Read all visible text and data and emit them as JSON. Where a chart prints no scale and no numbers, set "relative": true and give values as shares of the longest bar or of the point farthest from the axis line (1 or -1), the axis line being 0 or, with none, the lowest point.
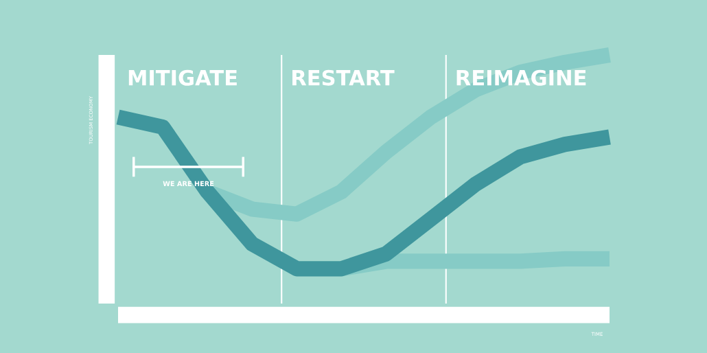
{
  "chart_data": {
    "type": "line",
    "relative": true,
    "ylabel": "TOURISM ECONOMY",
    "categories": [
      null,
      null,
      null,
      null,
      null,
      null,
      null,
      null,
      null,
      null,
      null,
      null
    ],
    "series": [
      {
        "color": "#86cbc6",
        "values": [
          null,
          null,
          0.45,
          0.38,
          0.36,
          0.45,
          0.61,
          0.75,
          0.86,
          0.93,
          0.97,
          1.0
        ]
      },
      {
        "color": "#86cbc6",
        "values": [
          null,
          null,
          null,
          null,
          null,
          0.14,
          0.17,
          0.17,
          0.17,
          0.17,
          0.18,
          0.18
        ]
      },
      {
        "color": "#3f969d",
        "values": [
          0.75,
          0.71,
          0.45,
          0.24,
          0.14,
          0.14,
          0.2,
          0.34,
          0.48,
          0.59,
          0.64,
          0.67
        ]
      }
    ],
    "annotations": [
      "MITIGATE",
      "RESTART",
      "REIMAGINE",
      "WE ARE HERE",
      "TIME"
    ]
  }
}
